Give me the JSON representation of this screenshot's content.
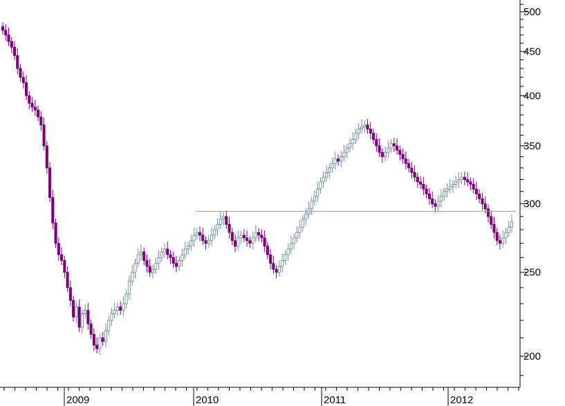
{
  "chart_data": {
    "type": "candlestick",
    "scale": "log",
    "y_axis_position": "right",
    "ylim": [
      185,
      515
    ],
    "y_ticks": [
      {
        "value": 500,
        "label": "500"
      },
      {
        "value": 450,
        "label": "450"
      },
      {
        "value": 400,
        "label": "400"
      },
      {
        "value": 350,
        "label": "350"
      },
      {
        "value": 300,
        "label": "300"
      },
      {
        "value": 250,
        "label": "250"
      },
      {
        "value": 200,
        "label": "200"
      }
    ],
    "x_year_labels": [
      "2009",
      "2010",
      "2011",
      "2012"
    ],
    "horizontal_line": {
      "value": 294,
      "color": "#e8823a"
    },
    "colors": {
      "down": "#800080",
      "up": "#6f8f99",
      "axis": "#000000"
    },
    "weekly_close": [
      476,
      470,
      462,
      455,
      445,
      430,
      420,
      414,
      400,
      392,
      388,
      385,
      378,
      370,
      350,
      330,
      305,
      285,
      270,
      262,
      258,
      250,
      240,
      232,
      222,
      228,
      216,
      224,
      226,
      218,
      212,
      206,
      204,
      210,
      208,
      214,
      220,
      224,
      226,
      228,
      226,
      230,
      236,
      244,
      250,
      256,
      262,
      264,
      258,
      254,
      250,
      252,
      256,
      260,
      264,
      266,
      262,
      260,
      256,
      254,
      258,
      262,
      266,
      268,
      272,
      276,
      278,
      276,
      272,
      270,
      272,
      276,
      280,
      284,
      288,
      290,
      284,
      278,
      272,
      268,
      274,
      276,
      274,
      272,
      270,
      274,
      278,
      276,
      274,
      268,
      262,
      256,
      252,
      250,
      254,
      258,
      262,
      266,
      270,
      274,
      278,
      282,
      288,
      292,
      296,
      302,
      306,
      312,
      318,
      322,
      326,
      330,
      334,
      338,
      336,
      340,
      344,
      348,
      352,
      356,
      362,
      366,
      368,
      370,
      366,
      362,
      356,
      350,
      344,
      340,
      344,
      348,
      352,
      350,
      346,
      342,
      338,
      334,
      330,
      326,
      322,
      318,
      316,
      312,
      308,
      304,
      300,
      298,
      302,
      306,
      310,
      312,
      314,
      316,
      318,
      320,
      322,
      320,
      318,
      316,
      312,
      308,
      304,
      300,
      296,
      290,
      284,
      278,
      272,
      270,
      274,
      278,
      282,
      286
    ]
  }
}
